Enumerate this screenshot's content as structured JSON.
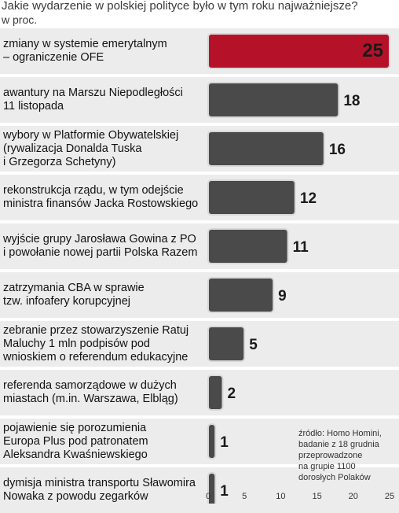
{
  "chart_data": {
    "type": "bar",
    "orientation": "horizontal",
    "title": "Jakie wydarzenie w polskiej polityce było w tym roku najważniejsze?",
    "unit": "w proc.",
    "categories": [
      [
        "zmiany w systemie emerytalnym",
        "– ograniczenie OFE"
      ],
      [
        "awantury na Marszu Niepodległości",
        "11 listopada"
      ],
      [
        "wybory w Platformie Obywatelskiej",
        "(rywalizacja Donalda Tuska",
        "i Grzegorza Schetyny)"
      ],
      [
        "rekonstrukcja rządu, w tym odejście",
        "ministra finansów Jacka Rostowskiego"
      ],
      [
        "wyjście grupy Jarosława Gowina z PO",
        "i powołanie nowej partii Polska Razem"
      ],
      [
        "zatrzymania CBA w sprawie",
        "tzw. infoafery korupcyjnej"
      ],
      [
        "zebranie przez stowarzyszenie Ratuj",
        "Maluchy 1 mln podpisów pod",
        "wnioskiem o referendum edukacyjne"
      ],
      [
        "referenda samorządowe w dużych",
        "miastach (m.in. Warszawa, Elbląg)"
      ],
      [
        "pojawienie się porozumienia",
        "Europa Plus pod patronatem",
        "Aleksandra Kwaśniewskiego"
      ],
      [
        "dymisja ministra transportu Sławomira",
        "Nowaka z powodu zegarków"
      ]
    ],
    "values": [
      25,
      18,
      16,
      12,
      11,
      9,
      5,
      2,
      1,
      1
    ],
    "xlim": [
      0,
      25
    ],
    "xticks": [
      0,
      5,
      10,
      15,
      20,
      25
    ],
    "highlight_color": "#b5122a",
    "bar_color": "#4a4a4a",
    "row_band_color": "#ececec",
    "grid": false
  },
  "source_note": [
    "źródło: Homo Homini,",
    "badanie z 18 grudnia",
    "przeprowadzone",
    "na grupie 1100",
    "dorosłych Polaków"
  ]
}
